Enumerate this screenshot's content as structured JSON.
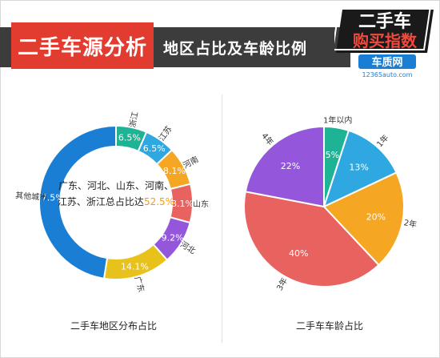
{
  "header": {
    "title": "二手车源分析",
    "subtitle": "地区占比及车龄比例"
  },
  "logo": {
    "line1": "二手车",
    "line2": "购买指数",
    "brand": "车质网",
    "url": "12365auto.com"
  },
  "colors": {
    "red": "#e8635f",
    "teal": "#1db394",
    "sky": "#2fa7e0",
    "orange": "#f5a623",
    "purple": "#9457db",
    "blue": "#1a7fd4",
    "yellow": "#e8c21a",
    "header_red": "#e23b30",
    "header_dark": "#3c3c3c"
  },
  "chart_data": [
    {
      "type": "pie",
      "subtype": "donut",
      "caption": "二手车地区分布占比",
      "center_text": "广东、河北、山东、河南、江苏、浙江总占比达",
      "center_value": "52.5%",
      "slices": [
        {
          "label": "浙江",
          "value": 6.5,
          "value_label": "6.5%",
          "color": "#1db394"
        },
        {
          "label": "江苏",
          "value": 6.5,
          "value_label": "6.5%",
          "color": "#2fa7e0"
        },
        {
          "label": "河南",
          "value": 8.1,
          "value_label": "8.1%",
          "color": "#f5a623"
        },
        {
          "label": "山东",
          "value": 8.1,
          "value_label": "8.1%",
          "color": "#e8635f"
        },
        {
          "label": "河北",
          "value": 9.2,
          "value_label": "9.2%",
          "color": "#9457db"
        },
        {
          "label": "广东",
          "value": 14.1,
          "value_label": "14.1%",
          "color": "#e8c21a"
        },
        {
          "label": "其他城市",
          "value": 47.5,
          "value_label": "47.5%",
          "color": "#1a7fd4"
        }
      ]
    },
    {
      "type": "pie",
      "caption": "二手车车龄占比",
      "slices": [
        {
          "label": "1年以内",
          "value": 5,
          "value_label": "5%",
          "color": "#1db394"
        },
        {
          "label": "1年",
          "value": 13,
          "value_label": "13%",
          "color": "#2fa7e0"
        },
        {
          "label": "2年",
          "value": 20,
          "value_label": "20%",
          "color": "#f5a623"
        },
        {
          "label": "3年",
          "value": 40,
          "value_label": "40%",
          "color": "#e8635f"
        },
        {
          "label": "4年",
          "value": 22,
          "value_label": "22%",
          "color": "#9457db"
        }
      ]
    }
  ]
}
